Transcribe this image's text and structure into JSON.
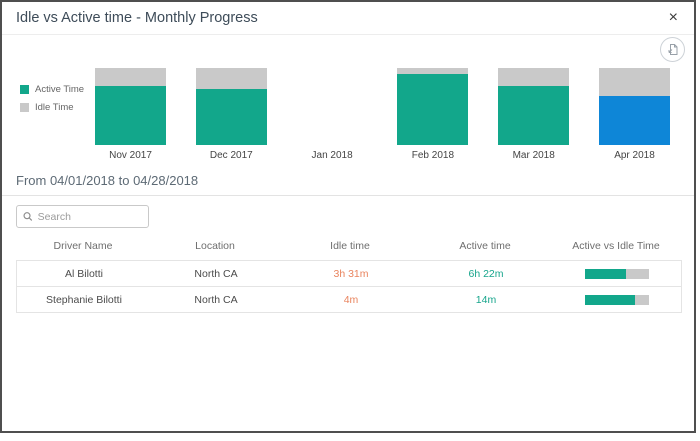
{
  "dialog": {
    "title": "Idle vs Active time - Monthly Progress",
    "close_glyph": "×"
  },
  "chart_data": {
    "type": "bar",
    "stacked": true,
    "title": "Idle vs Active time - Monthly Progress",
    "categories": [
      "Nov 2017",
      "Dec 2017",
      "Jan 2018",
      "Feb 2018",
      "Mar 2018",
      "Apr 2018"
    ],
    "series": [
      {
        "name": "Active Time",
        "values": [
          77,
          73,
          null,
          92,
          77,
          64
        ]
      },
      {
        "name": "Idle Time",
        "values": [
          23,
          27,
          null,
          8,
          23,
          36
        ]
      }
    ],
    "unit": "percent of month total (bars equal height; Jan 2018 has no data)",
    "selected_category": "Apr 2018",
    "legend_position": "left",
    "colors": {
      "active": "#12a78b",
      "idle": "#c9c9c9",
      "selected_active": "#0e86d7"
    }
  },
  "period_heading": "From 04/01/2018 to 04/28/2018",
  "search": {
    "placeholder": "Search"
  },
  "table": {
    "columns": [
      "Driver Name",
      "Location",
      "Idle time",
      "Active time",
      "Active vs Idle Time"
    ],
    "rows": [
      {
        "driver": "Al Bilotti",
        "location": "North CA",
        "idle": "3h 31m",
        "active": "6h 22m",
        "active_pct": 64
      },
      {
        "driver": "Stephanie Bilotti",
        "location": "North CA",
        "idle": "4m",
        "active": "14m",
        "active_pct": 78
      }
    ]
  },
  "colors": {
    "accent_teal": "#12a78b",
    "accent_blue": "#0e86d7",
    "idle_gray": "#c9c9c9",
    "idle_text_orange": "#e9845e",
    "active_text_teal": "#17a58c"
  }
}
